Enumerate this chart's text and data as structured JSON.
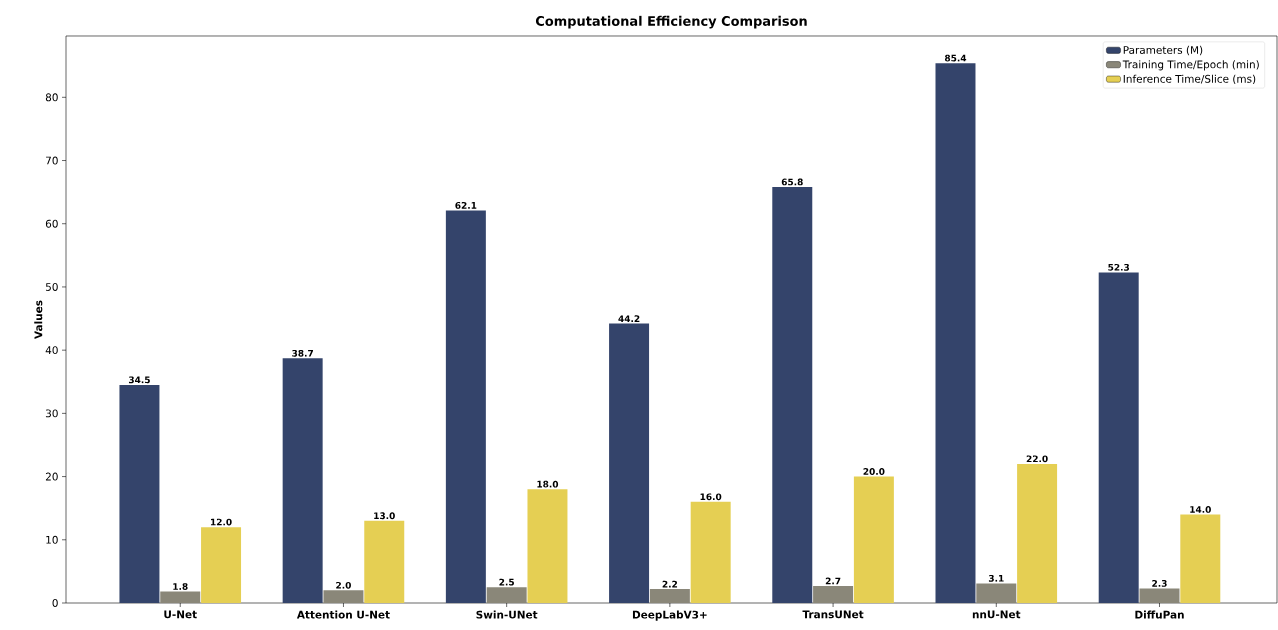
{
  "chart_data": {
    "type": "bar",
    "title": "Computational Efficiency Comparison",
    "ylabel": "Values",
    "categories": [
      "U-Net",
      "Attention U-Net",
      "Swin-UNet",
      "DeepLabV3+",
      "TransUNet",
      "nnU-Net",
      "DiffuPan"
    ],
    "series": [
      {
        "name": "Parameters (M)",
        "color": "#34446b",
        "values": [
          34.5,
          38.7,
          62.1,
          44.2,
          65.8,
          85.4,
          52.3
        ],
        "value_labels": [
          "34.5",
          "38.7",
          "62.1",
          "44.2",
          "65.8",
          "85.4",
          "52.3"
        ]
      },
      {
        "name": "Training Time/Epoch (min)",
        "color": "#8a8779",
        "values": [
          1.8,
          2.0,
          2.5,
          2.2,
          2.7,
          3.1,
          2.3
        ],
        "value_labels": [
          "1.8",
          "2.0",
          "2.5",
          "2.2",
          "2.7",
          "3.1",
          "2.3"
        ]
      },
      {
        "name": "Inference Time/Slice (ms)",
        "color": "#e5cf53",
        "values": [
          12,
          13,
          18,
          16,
          20,
          22,
          14
        ],
        "value_labels": [
          "12.0",
          "13.0",
          "18.0",
          "16.0",
          "20.0",
          "22.0",
          "14.0"
        ]
      }
    ],
    "ylim": [
      0,
      89.7
    ],
    "yticks": [
      0,
      10,
      20,
      30,
      40,
      50,
      60,
      70,
      80
    ],
    "legend": "top right",
    "grid": false
  }
}
